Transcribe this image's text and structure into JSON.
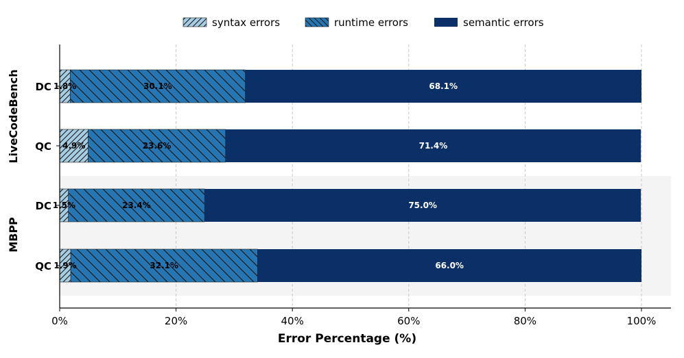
{
  "chart_data": {
    "type": "bar",
    "orientation": "horizontal",
    "stacked": true,
    "xlabel": "Error Percentage (%)",
    "xlim": [
      0,
      100
    ],
    "xticks": [
      "0%",
      "20%",
      "40%",
      "60%",
      "80%",
      "100%"
    ],
    "grid": "vertical-dashed",
    "legend": "top-center",
    "groups": [
      {
        "name": "LiveCodeBench",
        "shaded": false,
        "bars": [
          "DC",
          "QC"
        ]
      },
      {
        "name": "MBPP",
        "shaded": true,
        "bars": [
          "DC",
          "QC"
        ]
      }
    ],
    "categories": [
      "DC",
      "QC",
      "DC",
      "QC"
    ],
    "series": [
      {
        "name": "syntax errors",
        "color": "#a6cde2",
        "hatch": "/",
        "labels": [
          "1.8%",
          "4.9%",
          "1.5%",
          "1.9%"
        ],
        "values": [
          1.8,
          4.9,
          1.5,
          1.9
        ],
        "label_color": "#000000"
      },
      {
        "name": "runtime errors",
        "color": "#2676b4",
        "hatch": "\\",
        "labels": [
          "30.1%",
          "23.6%",
          "23.4%",
          "32.1%"
        ],
        "values": [
          30.1,
          23.6,
          23.4,
          32.1
        ],
        "label_color": "#000000"
      },
      {
        "name": "semantic errors",
        "color": "#0b3067",
        "hatch": "",
        "labels": [
          "68.1%",
          "71.4%",
          "75.0%",
          "66.0%"
        ],
        "values": [
          68.1,
          71.4,
          75.0,
          66.0
        ],
        "label_color": "#ffffff"
      }
    ]
  }
}
